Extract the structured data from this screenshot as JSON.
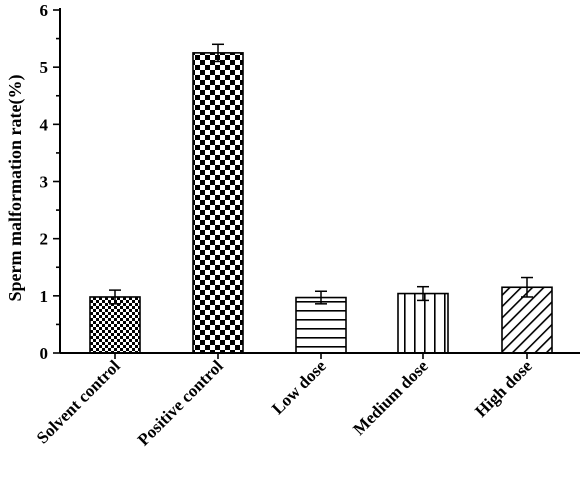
{
  "chart_data": {
    "type": "bar",
    "title": "",
    "xlabel": "",
    "ylabel": "Sperm malformation rate(%)",
    "categories": [
      "Solvent control",
      "Positive control",
      "Low dose",
      "Medium dose",
      "High dose"
    ],
    "values": [
      0.98,
      5.25,
      0.97,
      1.04,
      1.15
    ],
    "errors": [
      0.12,
      0.15,
      0.11,
      0.12,
      0.17
    ],
    "patterns": [
      "fine-checker",
      "coarse-checker",
      "horizontal-lines",
      "vertical-lines",
      "diagonal-lines"
    ],
    "ylim": [
      0,
      6
    ],
    "yticks": [
      "0",
      "1",
      "2",
      "3",
      "4",
      "5",
      "6"
    ],
    "grid": false,
    "legend": "none",
    "colors": {
      "bar_fill": "#ffffff",
      "pattern": "#000000",
      "axis": "#000000"
    }
  }
}
